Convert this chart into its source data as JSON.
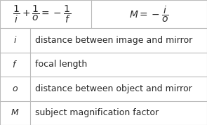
{
  "background_color": "#ffffff",
  "border_color": "#bbbbbb",
  "header_formula1": "$\\dfrac{1}{i} + \\dfrac{1}{o} = -\\dfrac{1}{f}$",
  "header_formula2": "$M = -\\dfrac{i}{o}$",
  "rows": [
    [
      "$i$",
      "distance between image and mirror"
    ],
    [
      "$f$",
      "focal length"
    ],
    [
      "$o$",
      "distance between object and mirror"
    ],
    [
      "$M$",
      "subject magnification factor"
    ]
  ],
  "text_color": "#2a2a2a",
  "header_fontsize": 10,
  "cell_fontsize": 9,
  "symbol_fontsize": 9,
  "fig_width": 2.95,
  "fig_height": 1.78,
  "dpi": 100
}
